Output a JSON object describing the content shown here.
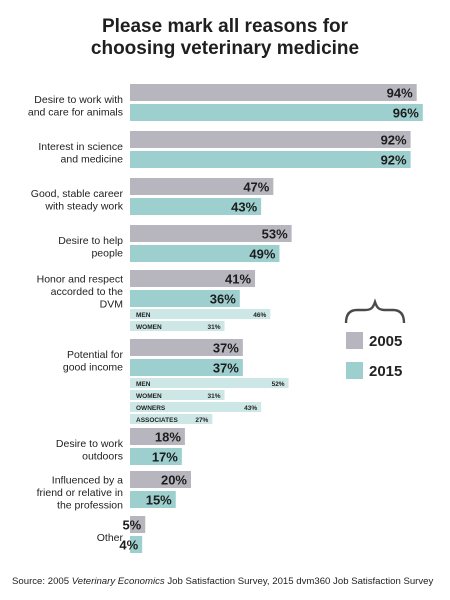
{
  "title_lines": [
    "Please mark all reasons for",
    "choosing veterinary medicine"
  ],
  "source": {
    "prefix": "Source: 2005 ",
    "italic": "Veterinary Economics",
    "suffix": " Job Satisfaction Survey, 2015 dvm360 Job Satisfaction Survey"
  },
  "colors": {
    "y2005": "#b7b6bf",
    "y2015": "#9ccfcd",
    "sub": "#cde7e6",
    "bracket": "#4a4a4a"
  },
  "legend": {
    "items": [
      {
        "label": "2005",
        "color": "#b7b6bf"
      },
      {
        "label": "2015",
        "color": "#9ccfcd"
      }
    ]
  },
  "chart_data": {
    "type": "bar",
    "orientation": "horizontal",
    "xlim": [
      0,
      100
    ],
    "categories": [
      {
        "label": [
          "Desire to work with",
          "and care for animals"
        ],
        "v2005": 94,
        "v2015": 96,
        "v2005_label": "94%",
        "v2015_label": "96%",
        "sub": []
      },
      {
        "label": [
          "Interest in science",
          "and medicine"
        ],
        "v2005": 92,
        "v2015": 92,
        "v2005_label": "92%",
        "v2015_label": "92%",
        "sub": []
      },
      {
        "label": [
          "Good, stable career",
          "with steady work"
        ],
        "v2005": 47,
        "v2015": 43,
        "v2005_label": "47%",
        "v2015_label": "43%",
        "sub": []
      },
      {
        "label": [
          "Desire to help",
          "people"
        ],
        "v2005": 53,
        "v2015": 49,
        "v2005_label": "53%",
        "v2015_label": "49%",
        "sub": []
      },
      {
        "label": [
          "Honor and respect",
          "accorded to the",
          "DVM"
        ],
        "v2005": 41,
        "v2015": 36,
        "v2005_label": "41%",
        "v2015_label": "36%",
        "sub": [
          {
            "label": "MEN",
            "value": 46,
            "value_label": "46%"
          },
          {
            "label": "WOMEN",
            "value": 31,
            "value_label": "31%"
          }
        ]
      },
      {
        "label": [
          "Potential for",
          "good income"
        ],
        "v2005": 37,
        "v2015": 37,
        "v2005_label": "37%",
        "v2015_label": "37%",
        "sub": [
          {
            "label": "MEN",
            "value": 52,
            "value_label": "52%"
          },
          {
            "label": "WOMEN",
            "value": 31,
            "value_label": "31%"
          },
          {
            "label": "OWNERS",
            "value": 43,
            "value_label": "43%"
          },
          {
            "label": "ASSOCIATES",
            "value": 27,
            "value_label": "27%"
          }
        ]
      },
      {
        "label": [
          "Desire to work",
          "outdoors"
        ],
        "v2005": 18,
        "v2015": 17,
        "v2005_label": "18%",
        "v2015_label": "17%",
        "sub": []
      },
      {
        "label": [
          "Influenced by a",
          "friend or relative in",
          "the profession"
        ],
        "v2005": 20,
        "v2015": 15,
        "v2005_label": "20%",
        "v2015_label": "15%",
        "sub": []
      },
      {
        "label": [
          "Other"
        ],
        "v2005": 5,
        "v2015": 4,
        "v2005_label": "5%",
        "v2015_label": "4%",
        "sub": []
      }
    ]
  }
}
